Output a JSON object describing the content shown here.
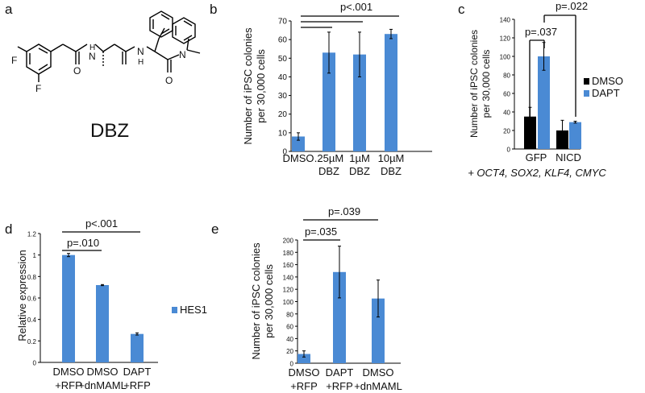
{
  "chart_data": [
    {
      "panel": "a",
      "type": "other",
      "atom_labels": [
        "F",
        "F",
        "H",
        "N",
        "O",
        "H",
        "N",
        "O",
        "N"
      ],
      "compound_name": "DBZ"
    },
    {
      "panel": "b",
      "type": "bar",
      "ylabel": [
        "Number of iPSC colonies",
        "per 30,000 cells"
      ],
      "ylim": [
        0,
        70
      ],
      "yticks": [
        0,
        10,
        20,
        30,
        40,
        50,
        60,
        70
      ],
      "categories": [
        [
          "DMSO"
        ],
        [
          ".25µM",
          "DBZ"
        ],
        [
          "1µM",
          "DBZ"
        ],
        [
          "10µM",
          "DBZ"
        ]
      ],
      "values": [
        8,
        53,
        52,
        63
      ],
      "errors": [
        2,
        11,
        12,
        2.5
      ],
      "significance": [
        {
          "text": "p<.001",
          "from": 0,
          "to": [
            1,
            2,
            3
          ]
        }
      ],
      "color": "#4a8ad4"
    },
    {
      "panel": "c",
      "type": "bar",
      "ylabel": [
        "Number of iPSC colonies",
        "per 30,000 cells"
      ],
      "ylim": [
        0,
        140
      ],
      "yticks": [
        0,
        20,
        40,
        60,
        80,
        100,
        120,
        140
      ],
      "categories": [
        "GFP",
        "NICD"
      ],
      "series": [
        {
          "name": "DMSO",
          "color": "#000000",
          "values": [
            35,
            20
          ],
          "errors": [
            10,
            11
          ]
        },
        {
          "name": "DAPT",
          "color": "#4a8ad4",
          "values": [
            100,
            29
          ],
          "errors": [
            15,
            1
          ]
        }
      ],
      "legend_position": "right",
      "significance": [
        {
          "text": "p=.037",
          "between": "GFP DMSO vs GFP DAPT"
        },
        {
          "text": "p=.022",
          "between": "GFP DAPT vs NICD DAPT"
        }
      ],
      "xnote": "+ OCT4, SOX2, KLF4, CMYC"
    },
    {
      "panel": "d",
      "type": "bar",
      "ylabel": "Relative expression",
      "ylim": [
        0,
        1.2
      ],
      "yticks": [
        "0",
        "0.2",
        "0.4",
        "0.6",
        "0.8",
        "1",
        "1.2"
      ],
      "categories": [
        [
          "DMSO",
          "+RFP"
        ],
        [
          "DMSO",
          "+dnMAML"
        ],
        [
          "DAPT",
          "+RFP"
        ]
      ],
      "series": [
        {
          "name": "HES1",
          "color": "#4a8ad4",
          "values": [
            1.0,
            0.72,
            0.265
          ],
          "errors": [
            0.015,
            0.005,
            0.01
          ]
        }
      ],
      "legend_position": "right",
      "significance": [
        {
          "text": "p=.010",
          "between": "DMSO +RFP vs DMSO +dnMAML"
        },
        {
          "text": "p<.001",
          "between": "DMSO +RFP vs DAPT +RFP"
        }
      ]
    },
    {
      "panel": "e",
      "type": "bar",
      "ylabel": [
        "Number of iPSC colonies",
        "per 30,000 cells"
      ],
      "ylim": [
        0,
        200
      ],
      "yticks": [
        0,
        20,
        40,
        60,
        80,
        100,
        120,
        140,
        160,
        180,
        200
      ],
      "categories": [
        [
          "DMSO",
          "+RFP"
        ],
        [
          "DAPT",
          "+RFP"
        ],
        [
          "DMSO",
          "+dnMAML"
        ]
      ],
      "values": [
        15,
        148,
        105
      ],
      "errors": [
        5,
        42,
        30
      ],
      "significance": [
        {
          "text": "p=.035",
          "between": "DMSO +RFP vs DAPT +RFP"
        },
        {
          "text": "p=.039",
          "between": "DMSO +RFP vs DMSO +dnMAML"
        }
      ],
      "color": "#4a8ad4"
    }
  ],
  "panel_letters": [
    "a",
    "b",
    "c",
    "d",
    "e"
  ]
}
